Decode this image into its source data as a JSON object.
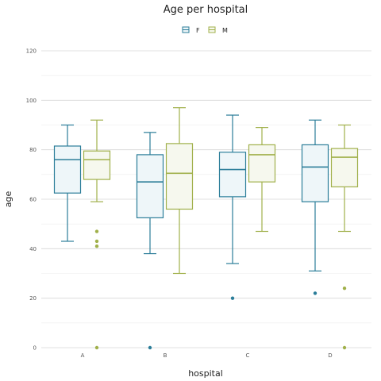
{
  "chart_data": {
    "type": "box",
    "title": "Age per hospital",
    "xlabel": "hospital",
    "ylabel": "age",
    "ylim": [
      0,
      120
    ],
    "yticks": [
      0,
      20,
      40,
      60,
      80,
      100,
      120
    ],
    "categories": [
      "A",
      "B",
      "C",
      "D"
    ],
    "grid": true,
    "legend_position": "top",
    "series": [
      {
        "name": "F",
        "color": "#2b7d99",
        "fill": "#eef6f9",
        "boxes": [
          {
            "category": "A",
            "min": 43,
            "q1": 62.5,
            "median": 76,
            "q3": 81.5,
            "max": 90,
            "outliers": []
          },
          {
            "category": "B",
            "min": 38,
            "q1": 52.5,
            "median": 67,
            "q3": 78,
            "max": 87,
            "outliers": [
              0
            ]
          },
          {
            "category": "C",
            "min": 34,
            "q1": 61,
            "median": 72,
            "q3": 79,
            "max": 94,
            "outliers": [
              20
            ]
          },
          {
            "category": "D",
            "min": 31,
            "q1": 59,
            "median": 73,
            "q3": 82,
            "max": 92,
            "outliers": [
              22
            ]
          }
        ]
      },
      {
        "name": "M",
        "color": "#a0b04a",
        "fill": "#f6f8ee",
        "boxes": [
          {
            "category": "A",
            "min": 59,
            "q1": 68,
            "median": 76,
            "q3": 79.5,
            "max": 92,
            "outliers": [
              47,
              43,
              41,
              0
            ]
          },
          {
            "category": "B",
            "min": 30,
            "q1": 56,
            "median": 70.5,
            "q3": 82.5,
            "max": 97,
            "outliers": []
          },
          {
            "category": "C",
            "min": 47,
            "q1": 67,
            "median": 78,
            "q3": 82,
            "max": 89,
            "outliers": []
          },
          {
            "category": "D",
            "min": 47,
            "q1": 65,
            "median": 77,
            "q3": 80.5,
            "max": 90,
            "outliers": [
              24,
              0
            ]
          }
        ]
      }
    ]
  }
}
